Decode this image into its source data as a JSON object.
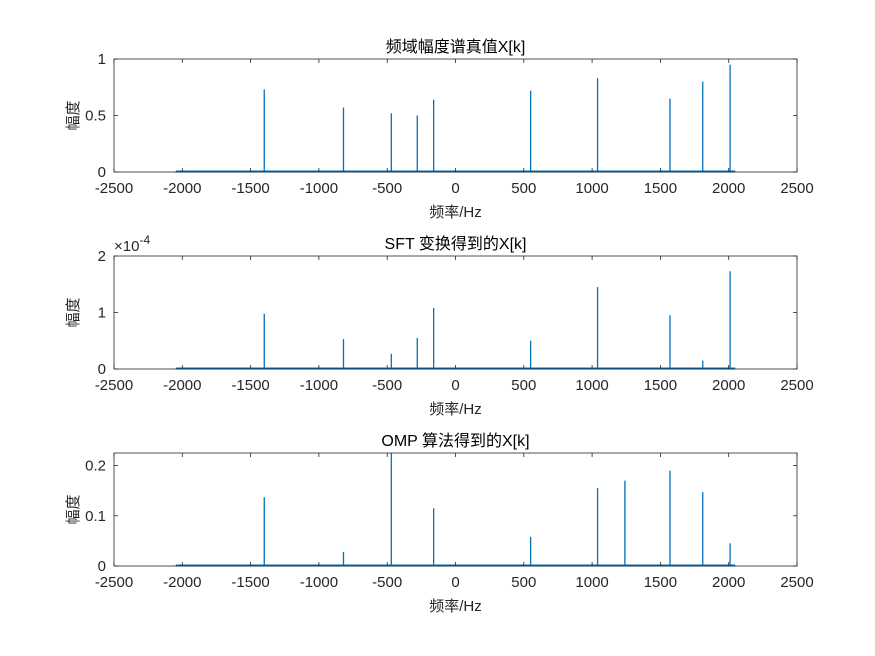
{
  "chart_data": [
    {
      "type": "stem",
      "title": "频域幅度谱真值X[k]",
      "xlabel": "频率/Hz",
      "ylabel": "幅度",
      "xlim": [
        -2500,
        2500
      ],
      "ylim": [
        0,
        1
      ],
      "xticks": [
        -2500,
        -2000,
        -1500,
        -1000,
        -500,
        0,
        500,
        1000,
        1500,
        2000,
        2500
      ],
      "xtick_labels": [
        "-2500",
        "-2000",
        "-1500",
        "-1000",
        "-500",
        "0",
        "500",
        "1000",
        "1500",
        "2000",
        "2500"
      ],
      "yticks": [
        0,
        0.5,
        1
      ],
      "ytick_labels": [
        "0",
        "0.5",
        "1"
      ],
      "exponent_label": "",
      "baseline_range": [
        -2048,
        2048
      ],
      "color": "#0072BD",
      "x": [
        -1400,
        -820,
        -470,
        -280,
        -160,
        550,
        1040,
        1570,
        1810,
        2010
      ],
      "y": [
        0.73,
        0.57,
        0.52,
        0.5,
        0.64,
        0.72,
        0.83,
        0.65,
        0.8,
        0.95
      ]
    },
    {
      "type": "stem",
      "title": "SFT 变换得到的X[k]",
      "xlabel": "频率/Hz",
      "ylabel": "幅度",
      "xlim": [
        -2500,
        2500
      ],
      "ylim": [
        0,
        2
      ],
      "xticks": [
        -2500,
        -2000,
        -1500,
        -1000,
        -500,
        0,
        500,
        1000,
        1500,
        2000,
        2500
      ],
      "xtick_labels": [
        "-2500",
        "-2000",
        "-1500",
        "-1000",
        "-500",
        "0",
        "500",
        "1000",
        "1500",
        "2000",
        "2500"
      ],
      "yticks": [
        0,
        1,
        2
      ],
      "ytick_labels": [
        "0",
        "1",
        "2"
      ],
      "exponent_label": "×10",
      "exponent_power": "-4",
      "baseline_range": [
        -2048,
        2048
      ],
      "color": "#0072BD",
      "x": [
        -1400,
        -820,
        -470,
        -280,
        -160,
        550,
        1040,
        1570,
        1810,
        2010
      ],
      "y": [
        0.98,
        0.53,
        0.27,
        0.55,
        1.08,
        0.5,
        1.45,
        0.95,
        0.15,
        1.73
      ]
    },
    {
      "type": "stem",
      "title": "OMP 算法得到的X[k]",
      "xlabel": "频率/Hz",
      "ylabel": "幅度",
      "xlim": [
        -2500,
        2500
      ],
      "ylim": [
        0,
        0.225
      ],
      "xticks": [
        -2500,
        -2000,
        -1500,
        -1000,
        -500,
        0,
        500,
        1000,
        1500,
        2000,
        2500
      ],
      "xtick_labels": [
        "-2500",
        "-2000",
        "-1500",
        "-1000",
        "-500",
        "0",
        "500",
        "1000",
        "1500",
        "2000",
        "2500"
      ],
      "yticks": [
        0,
        0.1,
        0.2
      ],
      "ytick_labels": [
        "0",
        "0.1",
        "0.2"
      ],
      "exponent_label": "",
      "baseline_range": [
        -2048,
        2048
      ],
      "color": "#0072BD",
      "x": [
        -1400,
        -820,
        -470,
        -160,
        550,
        1040,
        1240,
        1570,
        1810,
        2010
      ],
      "y": [
        0.137,
        0.028,
        0.225,
        0.115,
        0.058,
        0.155,
        0.17,
        0.19,
        0.147,
        0.045
      ]
    }
  ]
}
